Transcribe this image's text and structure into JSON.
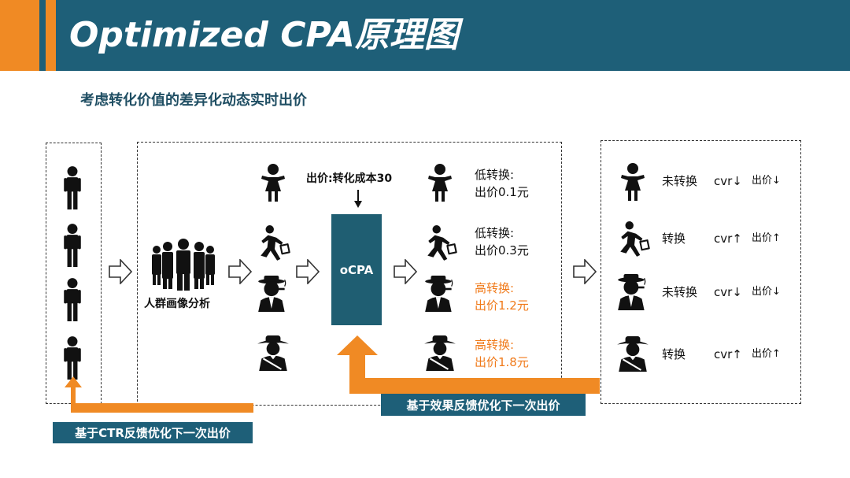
{
  "header": {
    "title": "Optimized CPA原理图"
  },
  "subtitle": "考虑转化价值的差异化动态实时出价",
  "crowd_label": "人群画像分析",
  "bid_label": "出价:转化成本30",
  "ocpa_label": "oCPA",
  "bids": [
    {
      "line1": "低转换:",
      "line2": "出价0.1元"
    },
    {
      "line1": "低转换:",
      "line2": "出价0.3元"
    },
    {
      "line1": "高转换:",
      "line2": "出价1.2元"
    },
    {
      "line1": "高转换:",
      "line2": "出价1.8元"
    }
  ],
  "outcomes": [
    {
      "status": "未转换",
      "cvr": "cvr",
      "bid": "出价"
    },
    {
      "status": "转换",
      "cvr": "cvr",
      "bid": "出价"
    },
    {
      "status": "未转换",
      "cvr": "cvr",
      "bid": "出价"
    },
    {
      "status": "转换",
      "cvr": "cvr",
      "bid": "出价"
    }
  ],
  "feedback_ctr": "基于CTR反馈优化下一次出价",
  "feedback_effect": "基于效果反馈优化下一次出价",
  "colors": {
    "header": "#1e5f78",
    "accent": "#f08a24",
    "highlight": "#f07a1a"
  }
}
